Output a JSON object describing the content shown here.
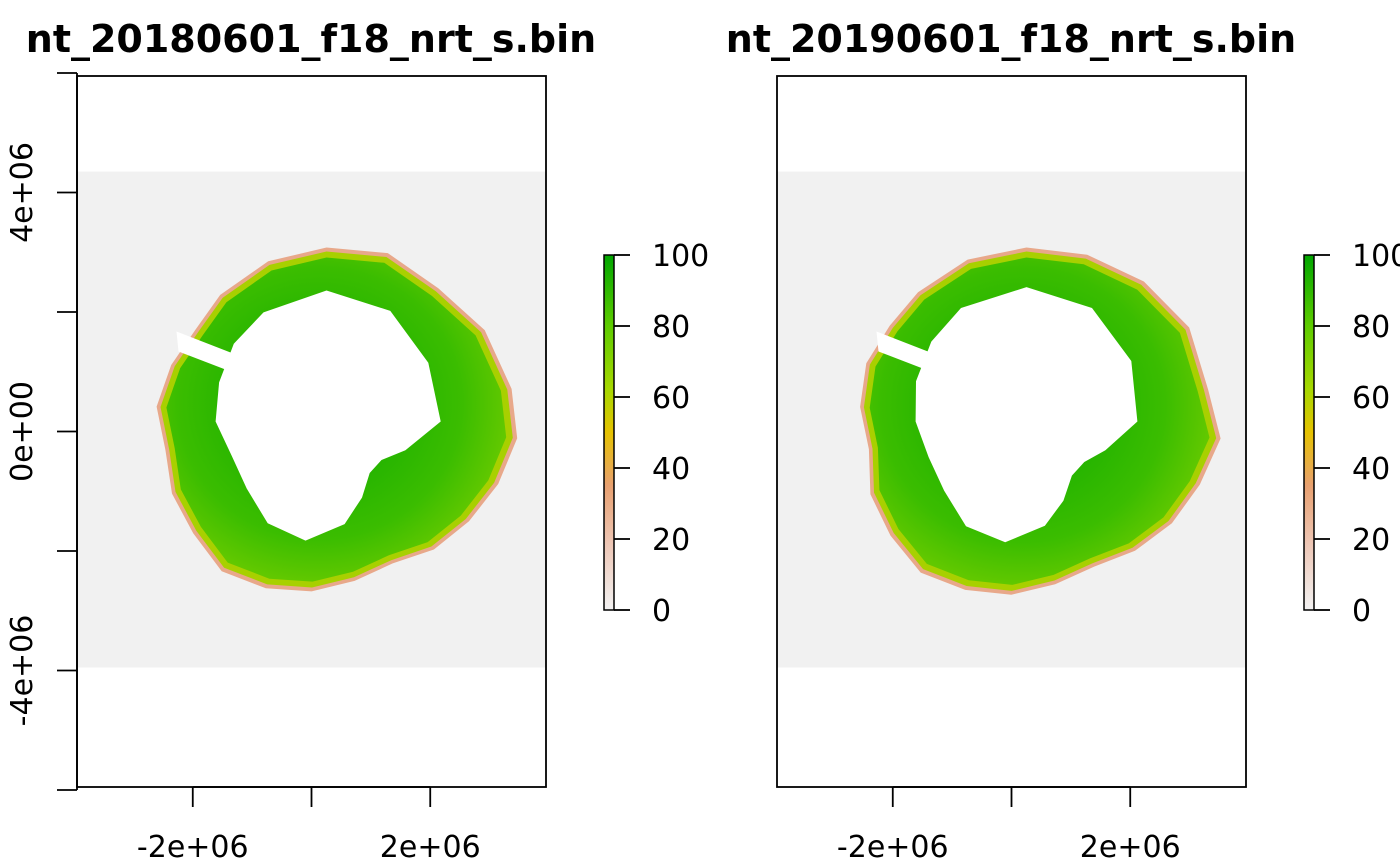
{
  "colors": {
    "background_fill": "#f1f1f1",
    "land": "#ffffff",
    "scale": [
      "#f2f2f2",
      "#eec8b8",
      "#e8a070",
      "#e6c200",
      "#a8d800",
      "#5ecc00",
      "#00a600"
    ]
  },
  "chart_data": [
    {
      "type": "heatmap",
      "title": "nt_20180601_f18_nrt_s.bin",
      "xlim": [
        -3950000,
        3950000
      ],
      "ylim": [
        -5950000,
        5950000
      ],
      "extent": {
        "xmin": -3950000,
        "xmax": 3950000,
        "ymin": -3950000,
        "ymax": 4350000
      },
      "x_ticks": [
        -2000000,
        0,
        2000000
      ],
      "x_tick_labels": [
        "-2e+06",
        "",
        "2e+06"
      ],
      "y_ticks": [
        -6000000,
        -4000000,
        -2000000,
        0,
        2000000,
        4000000,
        6000000
      ],
      "y_tick_labels": [
        "",
        "-4e+06",
        "",
        "0e+00",
        "",
        "4e+06",
        ""
      ],
      "legend": {
        "min": 0,
        "max": 100,
        "ticks": [
          0,
          20,
          40,
          60,
          80,
          100
        ],
        "tick_labels": [
          "0",
          "20",
          "40",
          "60",
          "80",
          "100"
        ]
      },
      "ice_shape": "2018"
    },
    {
      "type": "heatmap",
      "title": "nt_20190601_f18_nrt_s.bin",
      "xlim": [
        -3950000,
        3950000
      ],
      "ylim": [
        -5950000,
        5950000
      ],
      "extent": {
        "xmin": -3950000,
        "xmax": 3950000,
        "ymin": -3950000,
        "ymax": 4350000
      },
      "x_ticks": [
        -2000000,
        0,
        2000000
      ],
      "x_tick_labels": [
        "-2e+06",
        "",
        "2e+06"
      ],
      "legend": {
        "min": 0,
        "max": 100,
        "ticks": [
          0,
          20,
          40,
          60,
          80,
          100
        ],
        "tick_labels": [
          "0",
          "20",
          "40",
          "60",
          "80",
          "100"
        ]
      },
      "ice_shape": "2019"
    }
  ]
}
